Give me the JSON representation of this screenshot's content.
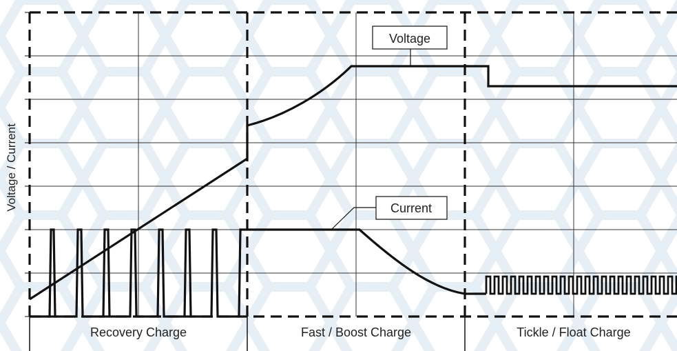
{
  "diagram": {
    "y_axis_label": "Voltage / Current",
    "phases": [
      {
        "label": "Recovery Charge"
      },
      {
        "label": "Fast / Boost Charge"
      },
      {
        "label": "Tickle / Float Charge"
      }
    ],
    "callouts": {
      "voltage": "Voltage",
      "current": "Current"
    }
  },
  "colors": {
    "line": "#111111",
    "grid": "#333333",
    "background": "#ffffff",
    "hex_pattern": "#e6eef6"
  }
}
